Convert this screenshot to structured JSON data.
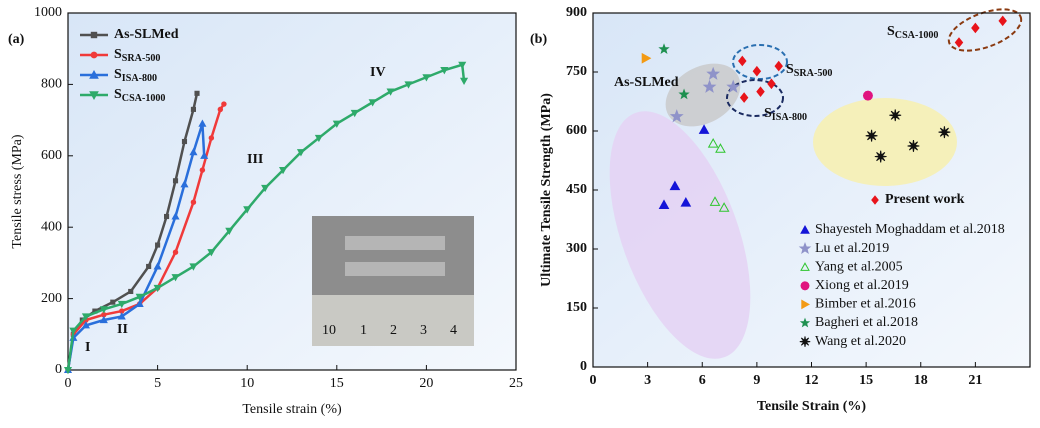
{
  "chart_data": [
    {
      "type": "line",
      "x_label": "Tensile strain (%)",
      "y_label": "Tensile stress (MPa)",
      "xlim": [
        0,
        25
      ],
      "xticks": [
        0,
        5,
        10,
        15,
        20,
        25
      ],
      "ylim": [
        0,
        1000
      ],
      "yticks": [
        0,
        200,
        400,
        600,
        800,
        1000
      ],
      "legend": "upper left",
      "annotations": [
        "(a)",
        "I",
        "II",
        "III",
        "IV"
      ],
      "inset_ruler_labels": [
        "10",
        "1",
        "2",
        "3",
        "4"
      ],
      "series": [
        {
          "name": "As-SLMed",
          "color": "#505050",
          "marker": "square",
          "x": [
            0,
            0.3,
            0.8,
            1.5,
            2.5,
            3.5,
            4.5,
            5,
            5.5,
            6,
            6.5,
            7,
            7.2
          ],
          "values": [
            0,
            100,
            140,
            165,
            190,
            220,
            290,
            350,
            430,
            530,
            640,
            730,
            775
          ]
        },
        {
          "name": "SSRA-500",
          "color": "#f03a3a",
          "marker": "circle",
          "x": [
            0,
            0.3,
            1,
            2,
            3,
            4,
            5,
            6,
            7,
            7.5,
            8,
            8.5,
            8.7
          ],
          "values": [
            0,
            100,
            140,
            155,
            165,
            185,
            230,
            330,
            470,
            560,
            650,
            730,
            745
          ]
        },
        {
          "name": "SISA-800",
          "color": "#2a6fdb",
          "marker": "triangle",
          "x": [
            0,
            0.3,
            1,
            2,
            3,
            4,
            5,
            6,
            6.5,
            7,
            7.5,
            7.6
          ],
          "values": [
            0,
            90,
            125,
            140,
            150,
            185,
            290,
            430,
            520,
            610,
            690,
            600
          ]
        },
        {
          "name": "SCSA-1000",
          "color": "#2eaa6a",
          "marker": "down-triangle",
          "x": [
            0,
            0.3,
            1,
            2,
            3,
            4,
            5,
            6,
            7,
            8,
            9,
            10,
            11,
            12,
            13,
            14,
            15,
            16,
            17,
            18,
            19,
            20,
            21,
            22,
            22.1
          ],
          "values": [
            0,
            110,
            150,
            170,
            185,
            205,
            230,
            260,
            290,
            330,
            390,
            450,
            510,
            560,
            610,
            650,
            690,
            720,
            750,
            780,
            800,
            820,
            840,
            855,
            810
          ]
        }
      ]
    },
    {
      "type": "scatter",
      "x_label": "Tensile Strain (%)",
      "y_label": "Ultimate Tensile Strength (MPa)",
      "xlim": [
        0,
        24
      ],
      "xticks": [
        0,
        3,
        6,
        9,
        12,
        15,
        18,
        21
      ],
      "ylim": [
        0,
        900
      ],
      "yticks": [
        0,
        150,
        300,
        450,
        600,
        750,
        900
      ],
      "legend": "lower right",
      "annotations": [
        "(b)",
        "As-SLMed",
        "SSRA-500",
        "SISA-800",
        "SCSA-1000"
      ],
      "series": [
        {
          "name": "Present work",
          "color": "#e8141b",
          "marker": "diamond",
          "x": [
            8.2,
            9,
            10.2,
            8.3,
            9.2,
            9.8,
            20.1,
            21,
            22.5
          ],
          "values": [
            778,
            752,
            765,
            685,
            700,
            720,
            825,
            862,
            880
          ]
        },
        {
          "name": "Shayesteh Moghaddam et al.2018",
          "color": "#1515d8",
          "marker": "triangle",
          "x": [
            4.5,
            3.9,
            5.1,
            6.1
          ],
          "values": [
            460,
            412,
            418,
            603
          ]
        },
        {
          "name": "Lu et al.2019",
          "color": "#8f93c9",
          "marker": "star",
          "x": [
            4.6,
            6.4,
            6.6,
            7.7
          ],
          "values": [
            637,
            712,
            745,
            712
          ]
        },
        {
          "name": "Yang et al.2005",
          "color": "#2ec52e",
          "marker": "open-triangle",
          "x": [
            6.6,
            7,
            6.7,
            7.2
          ],
          "values": [
            568,
            555,
            420,
            405
          ]
        },
        {
          "name": "Xiong et al.2019",
          "color": "#e0147f",
          "marker": "hexagon",
          "x": [
            15.1
          ],
          "values": [
            690
          ]
        },
        {
          "name": "Bimber et al.2016",
          "color": "#f39a14",
          "marker": "right-triangle",
          "x": [
            2.9
          ],
          "values": [
            785
          ]
        },
        {
          "name": "Bagheri et al.2018",
          "color": "#1e9050",
          "marker": "small-star",
          "x": [
            3.9,
            5.0
          ],
          "values": [
            808,
            693
          ]
        },
        {
          "name": "Wang et al.2020",
          "color": "#111111",
          "marker": "asterisk",
          "x": [
            15.3,
            15.8,
            16.6,
            17.6,
            19.3
          ],
          "values": [
            588,
            535,
            640,
            562,
            597
          ]
        }
      ]
    }
  ]
}
